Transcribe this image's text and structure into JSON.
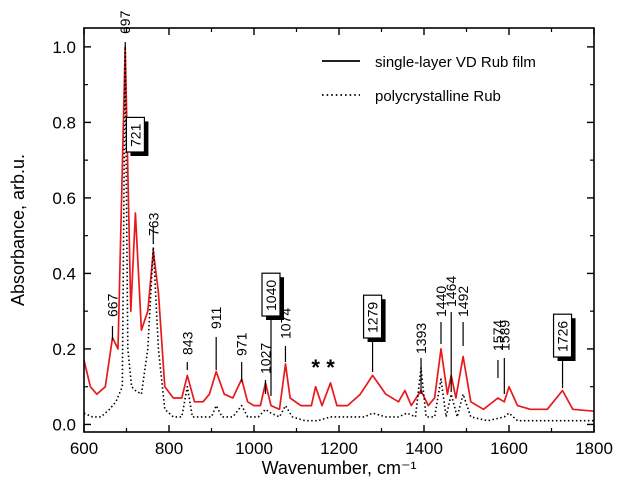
{
  "chart_data": {
    "type": "line",
    "xlabel": "Wavenumber, cm⁻¹",
    "ylabel": "Absorbance, arb.u.",
    "xlim": [
      600,
      1800
    ],
    "ylim": [
      -0.02,
      1.05
    ],
    "x_ticks": [
      "600",
      "800",
      "1000",
      "1200",
      "1400",
      "1600",
      "1800"
    ],
    "y_ticks": [
      "0.0",
      "0.2",
      "0.4",
      "0.6",
      "0.8",
      "1.0"
    ],
    "grid": false,
    "legend_position": "top-right",
    "series": [
      {
        "name": "single-layer VD Rub film",
        "color": "#e8191c",
        "style": "solid",
        "points": [
          [
            600,
            0.17
          ],
          [
            615,
            0.1
          ],
          [
            630,
            0.08
          ],
          [
            650,
            0.1
          ],
          [
            667,
            0.23
          ],
          [
            680,
            0.2
          ],
          [
            697,
            1.0
          ],
          [
            710,
            0.3
          ],
          [
            721,
            0.56
          ],
          [
            735,
            0.25
          ],
          [
            750,
            0.3
          ],
          [
            763,
            0.46
          ],
          [
            775,
            0.35
          ],
          [
            790,
            0.1
          ],
          [
            810,
            0.07
          ],
          [
            830,
            0.07
          ],
          [
            843,
            0.13
          ],
          [
            860,
            0.06
          ],
          [
            880,
            0.06
          ],
          [
            895,
            0.08
          ],
          [
            911,
            0.14
          ],
          [
            930,
            0.08
          ],
          [
            950,
            0.07
          ],
          [
            971,
            0.12
          ],
          [
            985,
            0.06
          ],
          [
            1000,
            0.05
          ],
          [
            1015,
            0.05
          ],
          [
            1027,
            0.11
          ],
          [
            1040,
            0.05
          ],
          [
            1060,
            0.04
          ],
          [
            1074,
            0.16
          ],
          [
            1085,
            0.07
          ],
          [
            1110,
            0.05
          ],
          [
            1135,
            0.05
          ],
          [
            1145,
            0.1
          ],
          [
            1160,
            0.05
          ],
          [
            1180,
            0.11
          ],
          [
            1195,
            0.05
          ],
          [
            1220,
            0.05
          ],
          [
            1250,
            0.08
          ],
          [
            1279,
            0.13
          ],
          [
            1310,
            0.08
          ],
          [
            1340,
            0.06
          ],
          [
            1355,
            0.09
          ],
          [
            1370,
            0.05
          ],
          [
            1393,
            0.09
          ],
          [
            1410,
            0.05
          ],
          [
            1425,
            0.07
          ],
          [
            1440,
            0.2
          ],
          [
            1455,
            0.08
          ],
          [
            1464,
            0.13
          ],
          [
            1475,
            0.07
          ],
          [
            1492,
            0.18
          ],
          [
            1510,
            0.06
          ],
          [
            1540,
            0.04
          ],
          [
            1574,
            0.07
          ],
          [
            1589,
            0.06
          ],
          [
            1600,
            0.1
          ],
          [
            1620,
            0.05
          ],
          [
            1650,
            0.04
          ],
          [
            1690,
            0.04
          ],
          [
            1726,
            0.09
          ],
          [
            1750,
            0.04
          ],
          [
            1800,
            0.035
          ]
        ]
      },
      {
        "name": "polycrystalline Rub",
        "color": "#000000",
        "style": "dotted",
        "points": [
          [
            600,
            0.03
          ],
          [
            620,
            0.02
          ],
          [
            640,
            0.02
          ],
          [
            660,
            0.04
          ],
          [
            675,
            0.06
          ],
          [
            690,
            0.1
          ],
          [
            697,
            1.0
          ],
          [
            703,
            0.2
          ],
          [
            712,
            0.1
          ],
          [
            721,
            0.09
          ],
          [
            735,
            0.08
          ],
          [
            750,
            0.2
          ],
          [
            763,
            0.47
          ],
          [
            775,
            0.2
          ],
          [
            790,
            0.04
          ],
          [
            810,
            0.02
          ],
          [
            830,
            0.02
          ],
          [
            843,
            0.1
          ],
          [
            855,
            0.02
          ],
          [
            880,
            0.02
          ],
          [
            900,
            0.02
          ],
          [
            911,
            0.05
          ],
          [
            925,
            0.02
          ],
          [
            950,
            0.02
          ],
          [
            971,
            0.05
          ],
          [
            985,
            0.02
          ],
          [
            1010,
            0.02
          ],
          [
            1027,
            0.04
          ],
          [
            1040,
            0.03
          ],
          [
            1060,
            0.02
          ],
          [
            1074,
            0.05
          ],
          [
            1090,
            0.02
          ],
          [
            1120,
            0.01
          ],
          [
            1150,
            0.01
          ],
          [
            1180,
            0.02
          ],
          [
            1220,
            0.02
          ],
          [
            1260,
            0.02
          ],
          [
            1279,
            0.03
          ],
          [
            1310,
            0.02
          ],
          [
            1340,
            0.02
          ],
          [
            1360,
            0.03
          ],
          [
            1380,
            0.02
          ],
          [
            1393,
            0.15
          ],
          [
            1405,
            0.02
          ],
          [
            1425,
            0.02
          ],
          [
            1440,
            0.12
          ],
          [
            1452,
            0.02
          ],
          [
            1464,
            0.08
          ],
          [
            1478,
            0.02
          ],
          [
            1492,
            0.08
          ],
          [
            1510,
            0.02
          ],
          [
            1550,
            0.01
          ],
          [
            1589,
            0.02
          ],
          [
            1600,
            0.03
          ],
          [
            1620,
            0.01
          ],
          [
            1680,
            0.01
          ],
          [
            1726,
            0.01
          ],
          [
            1760,
            0.01
          ],
          [
            1800,
            0.01
          ]
        ]
      }
    ],
    "peak_labels": [
      {
        "text": "697",
        "x": 697,
        "boxed": false
      },
      {
        "text": "721",
        "x": 721,
        "boxed": true
      },
      {
        "text": "763",
        "x": 763,
        "boxed": false
      },
      {
        "text": "667",
        "x": 667,
        "boxed": false
      },
      {
        "text": "843",
        "x": 843,
        "boxed": false
      },
      {
        "text": "911",
        "x": 911,
        "boxed": false
      },
      {
        "text": "971",
        "x": 971,
        "boxed": false
      },
      {
        "text": "1027",
        "x": 1027,
        "boxed": false
      },
      {
        "text": "1040",
        "x": 1040,
        "boxed": true
      },
      {
        "text": "1074",
        "x": 1074,
        "boxed": false
      },
      {
        "text": "1279",
        "x": 1279,
        "boxed": true
      },
      {
        "text": "1393",
        "x": 1393,
        "boxed": false
      },
      {
        "text": "1440",
        "x": 1440,
        "boxed": false
      },
      {
        "text": "1464",
        "x": 1464,
        "boxed": false
      },
      {
        "text": "1492",
        "x": 1492,
        "boxed": false
      },
      {
        "text": "1589",
        "x": 1589,
        "boxed": false
      },
      {
        "text": "1574",
        "x": 1574,
        "boxed": false
      },
      {
        "text": "1726",
        "x": 1726,
        "boxed": true
      }
    ],
    "asterisks": [
      {
        "text": "*",
        "x": 1145
      },
      {
        "text": "*",
        "x": 1180
      }
    ]
  }
}
